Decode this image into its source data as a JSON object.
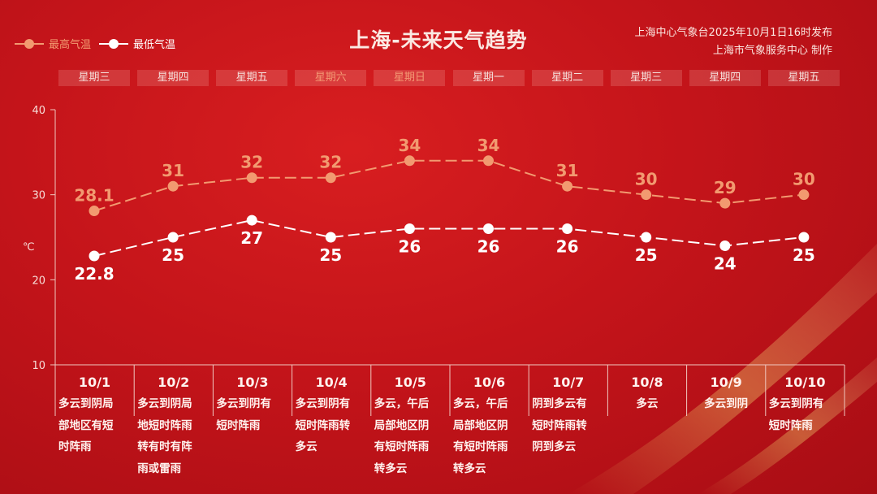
{
  "title": "上海-未来天气趋势",
  "publisher": {
    "line1": "上海中心气象台2025年10月1日16时发布",
    "line2": "上海市气象服务中心 制作"
  },
  "colors": {
    "high": "#f29a70",
    "low": "#ffffff",
    "background": "#c4141a",
    "weekend": "#f39a74"
  },
  "weekdays": [
    "星期三",
    "星期四",
    "星期五",
    "星期六",
    "星期日",
    "星期一",
    "星期二",
    "星期三",
    "星期四",
    "星期五"
  ],
  "descriptions": [
    [
      "多云到阴局",
      "部地区有短",
      "时阵雨"
    ],
    [
      "多云到阴局",
      "地短时阵雨",
      "转有时有阵",
      "雨或雷雨"
    ],
    [
      "多云到阴有",
      "短时阵雨"
    ],
    [
      "多云到阴有",
      "短时阵雨转",
      "多云"
    ],
    [
      "多云，午后",
      "局部地区阴",
      "有短时阵雨",
      "转多云"
    ],
    [
      "多云，午后",
      "局部地区阴",
      "有短时阵雨",
      "转多云"
    ],
    [
      "阴到多云有",
      "短时阵雨转",
      "阴到多云"
    ],
    [
      "多云"
    ],
    [
      "多云到阴"
    ],
    [
      "多云到阴有",
      "短时阵雨"
    ]
  ],
  "chart_data": {
    "type": "line",
    "title": "上海-未来天气趋势",
    "ylabel": "℃",
    "ylim": [
      10,
      40
    ],
    "yticks": [
      10,
      20,
      30,
      40
    ],
    "categories": [
      "10/1",
      "10/2",
      "10/3",
      "10/4",
      "10/5",
      "10/6",
      "10/7",
      "10/8",
      "10/9",
      "10/10"
    ],
    "legend_position": "top-left",
    "grid": false,
    "series": [
      {
        "name": "最高气温",
        "values": [
          28.1,
          31,
          32,
          32,
          34,
          34,
          31,
          30,
          29,
          30
        ],
        "labels": [
          "28.1",
          "31",
          "32",
          "32",
          "34",
          "34",
          "31",
          "30",
          "29",
          "30"
        ],
        "style": "dashed"
      },
      {
        "name": "最低气温",
        "values": [
          22.8,
          25,
          27,
          25,
          26,
          26,
          26,
          25,
          24,
          25
        ],
        "labels": [
          "22.8",
          "25",
          "27",
          "25",
          "26",
          "26",
          "26",
          "25",
          "24",
          "25"
        ],
        "style": "dashed"
      }
    ]
  }
}
